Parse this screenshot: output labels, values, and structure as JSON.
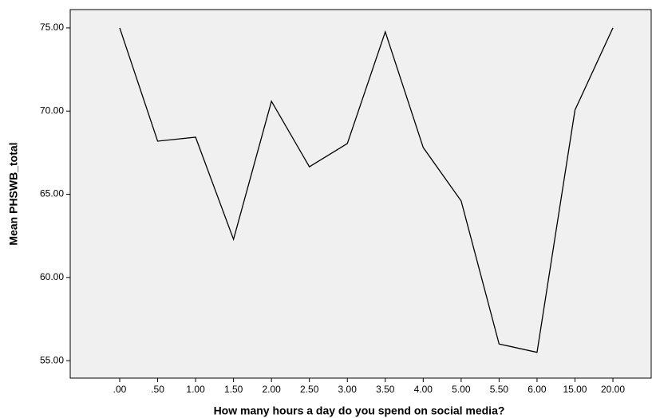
{
  "chart_data": {
    "type": "line",
    "x_label": "How many hours a day do you spend on social media?",
    "y_label": "Mean PHSWB_total",
    "categories": [
      ".00",
      ".50",
      "1.00",
      "1.50",
      "2.00",
      "2.50",
      "3.00",
      "3.50",
      "4.00",
      "5.00",
      "5.50",
      "6.00",
      "15.00",
      "20.00"
    ],
    "values": [
      75.0,
      68.19,
      68.43,
      62.29,
      70.59,
      66.65,
      68.05,
      74.76,
      67.81,
      64.6,
      56.0,
      55.5,
      70.06,
      75.0
    ],
    "color": "#000000",
    "ylim": [
      53.95,
      76.1
    ],
    "yticks": [
      {
        "value": 55,
        "label": "55.00"
      },
      {
        "value": 60,
        "label": "60.00"
      },
      {
        "value": 65,
        "label": "65.00"
      },
      {
        "value": 70,
        "label": "70.00"
      },
      {
        "value": 75,
        "label": "75.00"
      }
    ]
  }
}
